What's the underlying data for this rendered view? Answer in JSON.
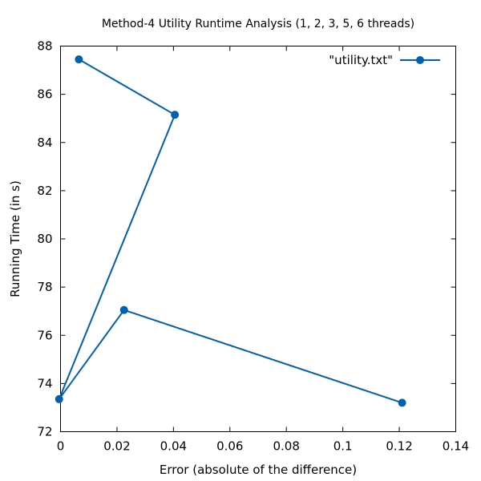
{
  "chart_data": {
    "type": "line",
    "title": "Method-4 Utility Runtime Analysis (1, 2, 3, 5, 6 threads)",
    "xlabel": "Error (absolute of the difference)",
    "ylabel": "Running Time (in s)",
    "xlim": [
      0,
      0.14
    ],
    "ylim": [
      72,
      88
    ],
    "x_ticks": [
      "0",
      "0.02",
      "0.04",
      "0.06",
      "0.08",
      "0.1",
      "0.12",
      "0.14"
    ],
    "y_ticks": [
      "72",
      "74",
      "76",
      "78",
      "80",
      "82",
      "84",
      "86",
      "88"
    ],
    "x_tick_values": [
      0,
      0.02,
      0.04,
      0.06,
      0.08,
      0.1,
      0.12,
      0.14
    ],
    "y_tick_values": [
      72,
      74,
      76,
      78,
      80,
      82,
      84,
      86,
      88
    ],
    "grid": false,
    "legend_position": "top-right",
    "series": [
      {
        "name": "\"utility.txt\"",
        "color": "#0060ad",
        "marker": "circle",
        "points": [
          {
            "x": 0.0065,
            "y": 87.45
          },
          {
            "x": 0.0405,
            "y": 85.15
          },
          {
            "x": -0.0005,
            "y": 73.35
          },
          {
            "x": 0.0225,
            "y": 77.05
          },
          {
            "x": 0.121,
            "y": 73.2
          }
        ]
      }
    ]
  }
}
